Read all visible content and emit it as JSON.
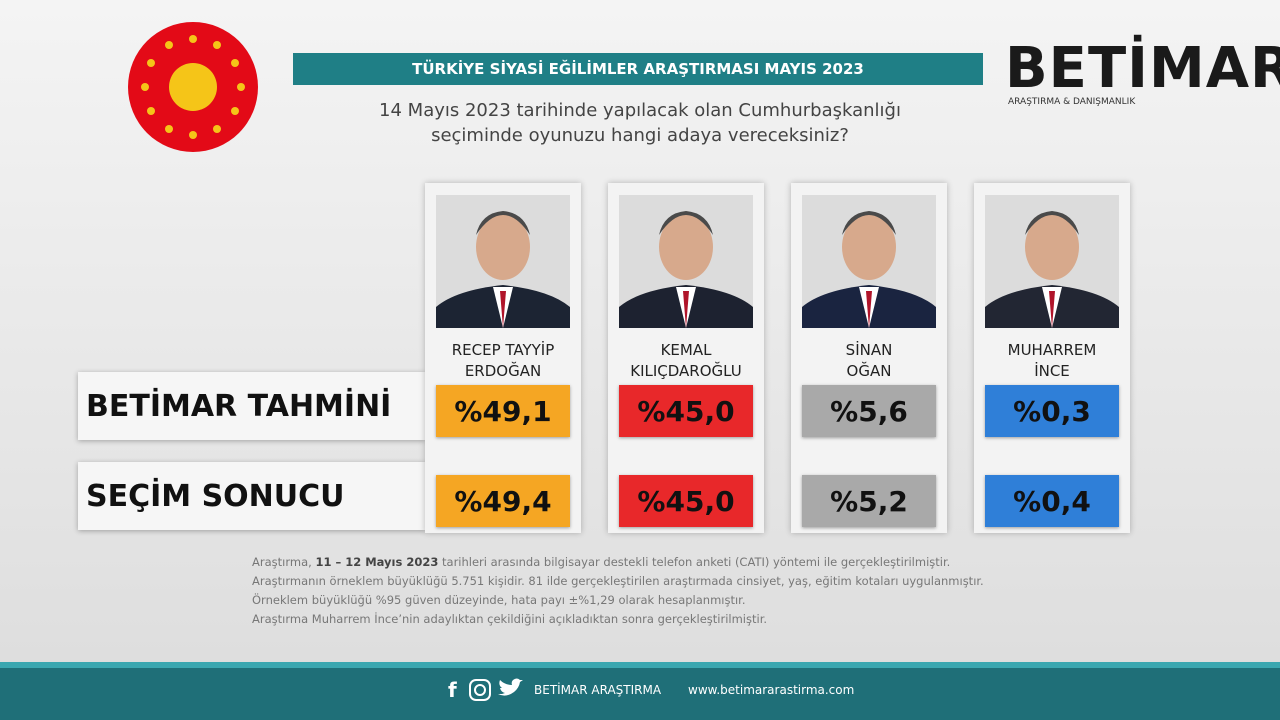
{
  "header": {
    "title": "TÜRKİYE SİYASİ EĞİLİMLER ARAŞTIRMASI MAYIS 2023",
    "question_line1": "14 Mayıs 2023 tarihinde yapılacak olan Cumhurbaşkanlığı",
    "question_line2": "seçiminde oyunuzu hangi adaya vereceksiniz?"
  },
  "logo": {
    "name": "BETİMAR",
    "tagline": "ARAŞTIRMA & DANIŞMANLIK"
  },
  "candidates": [
    {
      "line1": "RECEP TAYYİP",
      "line2": "ERDOĞAN"
    },
    {
      "line1": "KEMAL",
      "line2": "KILIÇDAROĞLU"
    },
    {
      "line1": "SİNAN",
      "line2": "OĞAN"
    },
    {
      "line1": "MUHARREM",
      "line2": "İNCE"
    }
  ],
  "table": {
    "rows": [
      {
        "label": "BETİMAR TAHMİNİ",
        "cells": [
          "%49,1",
          "%45,0",
          "%5,6",
          "%0,3"
        ]
      },
      {
        "label": "SEÇİM SONUCU",
        "cells": [
          "%49,4",
          "%45,0",
          "%5,2",
          "%0,4"
        ]
      }
    ]
  },
  "notes": [
    {
      "before": "Araştırma, ",
      "bold": "11 – 12 Mayıs 2023",
      "after": " tarihleri arasında bilgisayar destekli telefon anketi (CATI) yöntemi ile gerçekleştirilmiştir."
    },
    {
      "text": "Araştırmanın örneklem büyüklüğü 5.751 kişidir. 81 ilde gerçekleştirilen araştırmada cinsiyet, yaş, eğitim kotaları uygulanmıştır."
    },
    {
      "text": "Örneklem büyüklüğü %95 güven düzeyinde, hata payı ±%1,29 olarak hesaplanmıştır."
    },
    {
      "text": "Araştırma Muharrem İnce’nin adaylıktan çekildiğini açıkladıktan sonra gerçekleştirilmiştir."
    }
  ],
  "footer": {
    "social": "BETİMAR ARAŞTIRMA",
    "website": "www.betimararastirma.com"
  }
}
